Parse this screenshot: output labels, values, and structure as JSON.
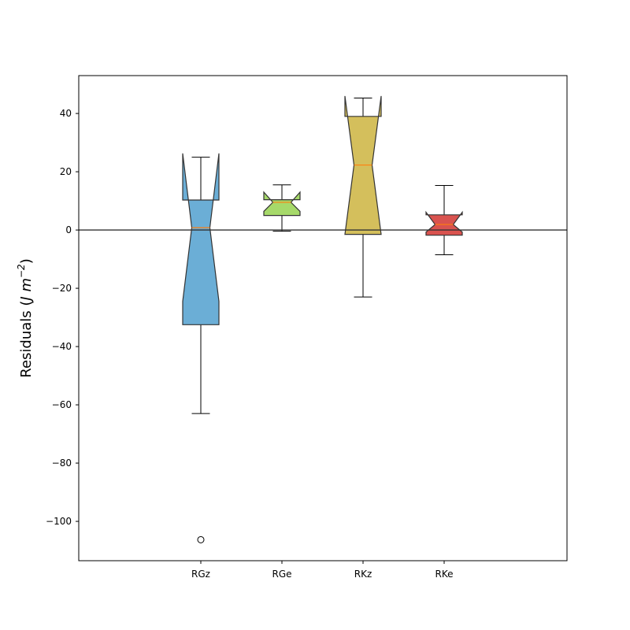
{
  "chart_data": {
    "type": "box",
    "notched": true,
    "ylabel": "Residuals",
    "ylabel_unit_base": "J m",
    "ylabel_unit_exp": "−2",
    "ylim": [
      -113.5,
      53
    ],
    "yticks": [
      40,
      20,
      0,
      -20,
      -40,
      -60,
      -80,
      -100
    ],
    "ytick_labels": [
      "40",
      "20",
      "0",
      "−20",
      "−40",
      "−60",
      "−80",
      "−100"
    ],
    "reference_line": 0,
    "categories": [
      "RGz",
      "RGe",
      "RKz",
      "RKe"
    ],
    "boxes": [
      {
        "label": "RGz",
        "whisker_low": -63,
        "q1": -32.5,
        "median": 0.8,
        "q3": 10.3,
        "whisker_high": 25,
        "notch_low": -24.5,
        "notch_high": 26.3,
        "outliers": [
          -106.3
        ],
        "color": "#6baed6"
      },
      {
        "label": "RGe",
        "whisker_low": -0.4,
        "q1": 5,
        "median": 9.5,
        "q3": 10.4,
        "whisker_high": 15.5,
        "notch_low": 6.4,
        "notch_high": 13,
        "outliers": [],
        "color": "#a6d96a"
      },
      {
        "label": "RKz",
        "whisker_low": -23,
        "q1": -1.5,
        "median": 22.3,
        "q3": 39,
        "whisker_high": 45.3,
        "notch_low": -1.5,
        "notch_high": 46,
        "outliers": [],
        "color": "#d4bf5c"
      },
      {
        "label": "RKe",
        "whisker_low": -8.5,
        "q1": -1.8,
        "median": 1.9,
        "q3": 5.2,
        "whisker_high": 15.3,
        "notch_low": -0.7,
        "notch_high": 6.1,
        "outliers": [],
        "color": "#d9534f"
      }
    ],
    "colors": {
      "median": "#ff7f0e",
      "edge": "#333333",
      "axis": "#000000"
    }
  }
}
